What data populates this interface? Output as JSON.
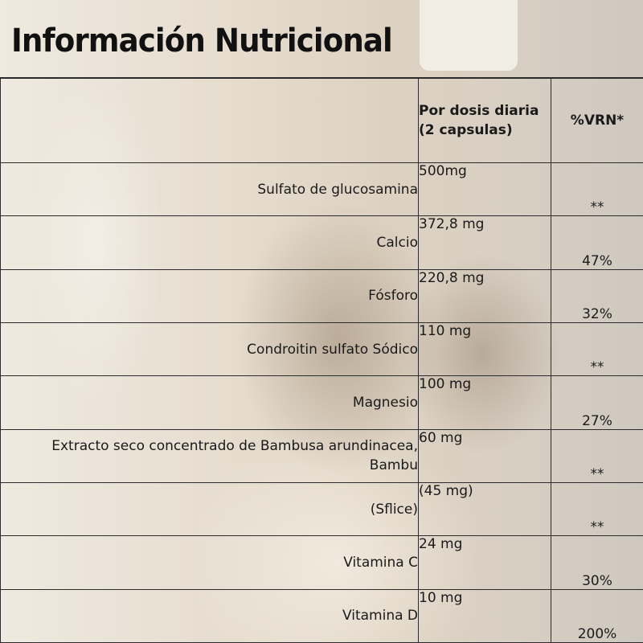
{
  "title": "Información Nutricional",
  "table": {
    "header": {
      "name": "",
      "amount": "Por dosis diaria (2 capsulas)",
      "vrn": "%VRN*"
    },
    "rows": [
      {
        "name": "Sulfato de glucosamina",
        "amount": "500mg",
        "vrn": "**"
      },
      {
        "name": "Calcio",
        "amount": "372,8 mg",
        "vrn": "47%"
      },
      {
        "name": "Fósforo",
        "amount": "220,8 mg",
        "vrn": "32%"
      },
      {
        "name": "Condroitin sulfato Sódico",
        "amount": "110 mg",
        "vrn": "**"
      },
      {
        "name": "Magnesio",
        "amount": "100 mg",
        "vrn": "27%"
      },
      {
        "name": "Extracto seco concentrado de Bambusa arundinacea, Bambu",
        "amount": "60 mg",
        "vrn": "**"
      },
      {
        "name": "(Sflice)",
        "amount": "(45 mg)",
        "vrn": "**"
      },
      {
        "name": "Vitamina C",
        "amount": "24 mg",
        "vrn": "30%"
      },
      {
        "name": "Vitamina D",
        "amount": "10 mg",
        "vrn": "200%"
      }
    ]
  }
}
